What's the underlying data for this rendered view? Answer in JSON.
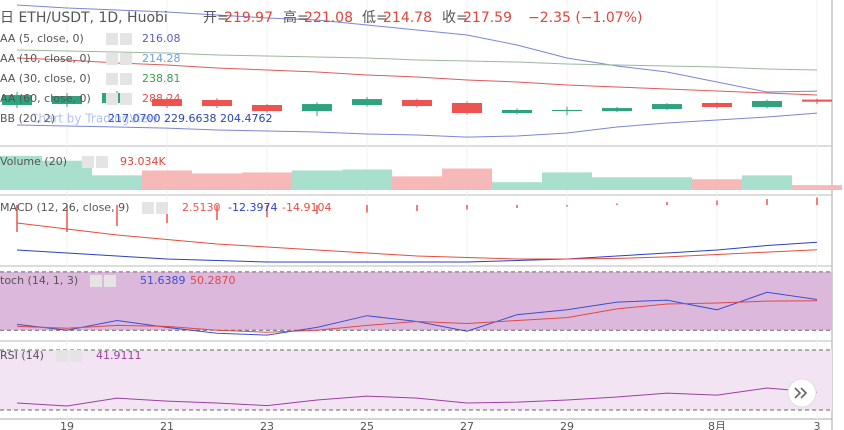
{
  "chart_data": [
    {
      "type": "candlestick",
      "title": "日 ETH/USDT, 1D, Huobi",
      "ohlc": [
        {
          "label": "开=",
          "value_label": "219.97"
        },
        {
          "label": "高=",
          "value_label": "221.08"
        },
        {
          "label": "低=",
          "value_label": "214.78"
        },
        {
          "label": "收=",
          "value_label": "217.59"
        }
      ],
      "change": "−2.35 (−1.07%)",
      "watermark": "Chart by TradingView",
      "categories": [
        null,
        "19",
        null,
        "21",
        null,
        "23",
        null,
        "25",
        null,
        "27",
        null,
        "29",
        null,
        null,
        "8月",
        null,
        "3"
      ],
      "open": [
        213.8,
        214.9,
        216.1,
        220.6,
        219.5,
        213.8,
        206.9,
        213.8,
        219.5,
        216.1,
        204.6,
        206.9,
        206.9,
        209.2,
        216.1,
        211.5,
        219.97
      ],
      "high": [
        228.7,
        227.5,
        229.8,
        222.9,
        221.7,
        215.0,
        217.0,
        223.0,
        221.0,
        218.0,
        210.0,
        212.0,
        211.5,
        216.0,
        217.0,
        220.0,
        221.08
      ],
      "low": [
        210.3,
        211.5,
        213.8,
        210.3,
        210.3,
        205.0,
        201.2,
        212.0,
        211.0,
        203.0,
        203.0,
        202.0,
        205.8,
        208.0,
        210.0,
        210.0,
        214.78
      ],
      "close": [
        225.2,
        224.1,
        227.5,
        212.6,
        212.6,
        206.9,
        214.9,
        220.6,
        212.6,
        204.6,
        208.1,
        208.1,
        210.3,
        214.9,
        211.5,
        218.4,
        217.59
      ],
      "up_color": "#2fa37f",
      "down_color": "#ef5350",
      "ylim": [
        168,
        334
      ],
      "lines": [
        {
          "color": "#7b86d6",
          "values": [
            328.3,
            324.8,
            322.6,
            320.3,
            316.8,
            313.4,
            311.1,
            305.4,
            299.7,
            293.9,
            282.5,
            267.6,
            258.4,
            251.6,
            240.1,
            228.7,
            229.66
          ]
        },
        {
          "color": "#7b86d6",
          "values": [
            190.9,
            189.7,
            188.6,
            187.4,
            185.2,
            184.0,
            182.9,
            180.6,
            179.4,
            177.1,
            178.3,
            181.7,
            188.6,
            193.2,
            196.6,
            200.0,
            204.48
          ]
        },
        {
          "color": "#9cb89c",
          "values": [
            276.8,
            275.6,
            274.5,
            273.3,
            271.0,
            269.9,
            268.7,
            267.6,
            265.3,
            264.2,
            263.0,
            260.7,
            259.6,
            258.4,
            257.3,
            255.0,
            253.9
          ]
        },
        {
          "color": "#e05a5a",
          "values": [
            267.6,
            265.3,
            261.9,
            259.6,
            256.1,
            253.9,
            251.6,
            248.1,
            245.8,
            242.4,
            240.1,
            236.7,
            234.4,
            232.1,
            229.8,
            227.5,
            225.2
          ]
        }
      ],
      "legend": [
        {
          "label": "AA (5, close, 0)",
          "values": [
            {
              "value_label": "216.08",
              "color": "#5b5fb5"
            }
          ]
        },
        {
          "label": "AA (10, close, 0)",
          "values": [
            {
              "value_label": "214.28",
              "color": "#6fa0d8"
            }
          ]
        },
        {
          "label": "AA (30, close, 0)",
          "values": [
            {
              "value_label": "238.81",
              "color": "#3f9b4f"
            }
          ]
        },
        {
          "label": "AA (60, close, 0)",
          "values": [
            {
              "value_label": "288.24",
              "color": "#e05050"
            }
          ]
        },
        {
          "label": "BB (20, 2)",
          "values": [
            {
              "value_label": "217.0700",
              "color": "#2b46b8"
            },
            {
              "value_label": "229.6638",
              "color": "#2b46b8"
            },
            {
              "value_label": "204.4762",
              "color": "#2b46b8"
            }
          ]
        }
      ]
    },
    {
      "type": "bar",
      "title": "Volume (20)",
      "value_label": "93.034K",
      "values": [
        651000,
        558000,
        279000,
        372000,
        316000,
        335000,
        372000,
        391000,
        260000,
        409000,
        149000,
        335000,
        242000,
        242000,
        205000,
        279000,
        93034
      ],
      "up_color": "#a9dfcd",
      "down_color": "#f7b9b7",
      "ylim": [
        0,
        800000
      ]
    },
    {
      "type": "combo",
      "title": "MACD (12, 26, close, 9)",
      "ylim": [
        -20,
        3
      ],
      "series": [
        {
          "type": "bar",
          "color": "#ef5350",
          "value_label": "2.5130",
          "values": [
            -9,
            -9,
            -7,
            -6,
            -5,
            -4,
            -3,
            -2.5,
            -2,
            -1.5,
            -1,
            -0.5,
            0.5,
            1,
            1.5,
            2,
            2.513
          ]
        },
        {
          "type": "line",
          "color": "#2b3fc7",
          "value_label": "-12.3974",
          "values": [
            -15,
            -16,
            -17,
            -18,
            -18.5,
            -19,
            -19,
            -19,
            -19,
            -19,
            -18.5,
            -18,
            -17,
            -16,
            -15,
            -13.5,
            -12.3974
          ]
        },
        {
          "type": "line",
          "color": "#e74c3c",
          "value_label": "-14.9104",
          "values": [
            -6,
            -8,
            -10,
            -11.5,
            -13,
            -14,
            -15,
            -16,
            -17,
            -17.5,
            -18,
            -18,
            -17.8,
            -17.3,
            -16.5,
            -15.7,
            -14.9104
          ]
        }
      ]
    },
    {
      "type": "line",
      "title": "toch (14, 1, 3)",
      "ylim": [
        10,
        84
      ],
      "levels": [
        20,
        80
      ],
      "band_color": "#dcb9dc",
      "series": [
        {
          "color": "#3b4fd0",
          "value_label": "51.6389",
          "values": [
            26,
            20,
            30,
            23,
            17,
            15,
            23,
            35,
            29,
            19,
            36,
            41,
            49,
            51,
            41,
            59,
            51.6389
          ]
        },
        {
          "color": "#e04848",
          "value_label": "50.2870",
          "values": [
            24,
            22,
            25,
            24,
            20,
            18,
            20,
            25,
            29,
            27,
            30,
            33,
            42,
            47,
            48,
            50,
            50.287
          ]
        }
      ]
    },
    {
      "type": "line",
      "title": "RSI (14)",
      "ylim": [
        24.7,
        74.7
      ],
      "levels": [
        30,
        70
      ],
      "band_color": "#f3e4f3",
      "series": [
        {
          "color": "#9c3fa0",
          "value_label": "41.9111",
          "values": [
            34.7,
            32.7,
            38,
            36,
            34.7,
            33,
            36.7,
            39.3,
            38,
            34.7,
            35.3,
            36.7,
            38.7,
            41.3,
            40,
            44.7,
            41.9111
          ]
        }
      ]
    }
  ]
}
